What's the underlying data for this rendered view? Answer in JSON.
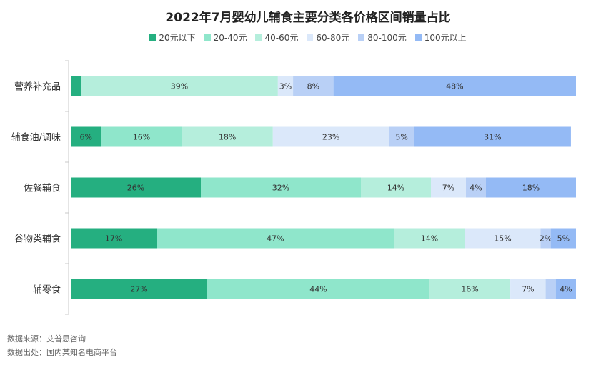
{
  "chart_data": {
    "type": "bar",
    "orientation": "horizontal",
    "stacked": true,
    "title": "2022年7月婴幼儿辅食主要分类各价格区间销量占比",
    "categories": [
      "营养补充品",
      "辅食油/调味",
      "佐餐辅食",
      "谷物类辅食",
      "辅零食"
    ],
    "xlim": [
      0,
      100
    ],
    "grid": false,
    "legend_position": "top",
    "series": [
      {
        "name": "20元以下",
        "color": "#25AF80",
        "values": [
          2,
          6,
          26,
          17,
          27
        ],
        "labels": [
          "",
          "6%",
          "26%",
          "17%",
          "27%"
        ]
      },
      {
        "name": "20-40元",
        "color": "#8FE6CB",
        "values": [
          0,
          16,
          32,
          47,
          44
        ],
        "labels": [
          "",
          "16%",
          "32%",
          "47%",
          "44%"
        ]
      },
      {
        "name": "40-60元",
        "color": "#B5EEDC",
        "values": [
          39,
          18,
          14,
          14,
          16
        ],
        "labels": [
          "39%",
          "18%",
          "14%",
          "14%",
          "16%"
        ]
      },
      {
        "name": "60-80元",
        "color": "#DBE8FA",
        "values": [
          3,
          23,
          7,
          15,
          7
        ],
        "labels": [
          "3%",
          "23%",
          "7%",
          "15%",
          "7%"
        ]
      },
      {
        "name": "80-100元",
        "color": "#B9D0F6",
        "values": [
          8,
          5,
          4,
          2,
          2
        ],
        "labels": [
          "8%",
          "5%",
          "4%",
          "2%",
          ""
        ]
      },
      {
        "name": "100元以上",
        "color": "#94BAF5",
        "values": [
          48,
          31,
          18,
          5,
          4
        ],
        "labels": [
          "48%",
          "31%",
          "18%",
          "5%",
          "4%"
        ]
      }
    ]
  },
  "notes": {
    "source": "数据来源：艾普思咨询",
    "origin": "数据出处：国内某知名电商平台"
  }
}
